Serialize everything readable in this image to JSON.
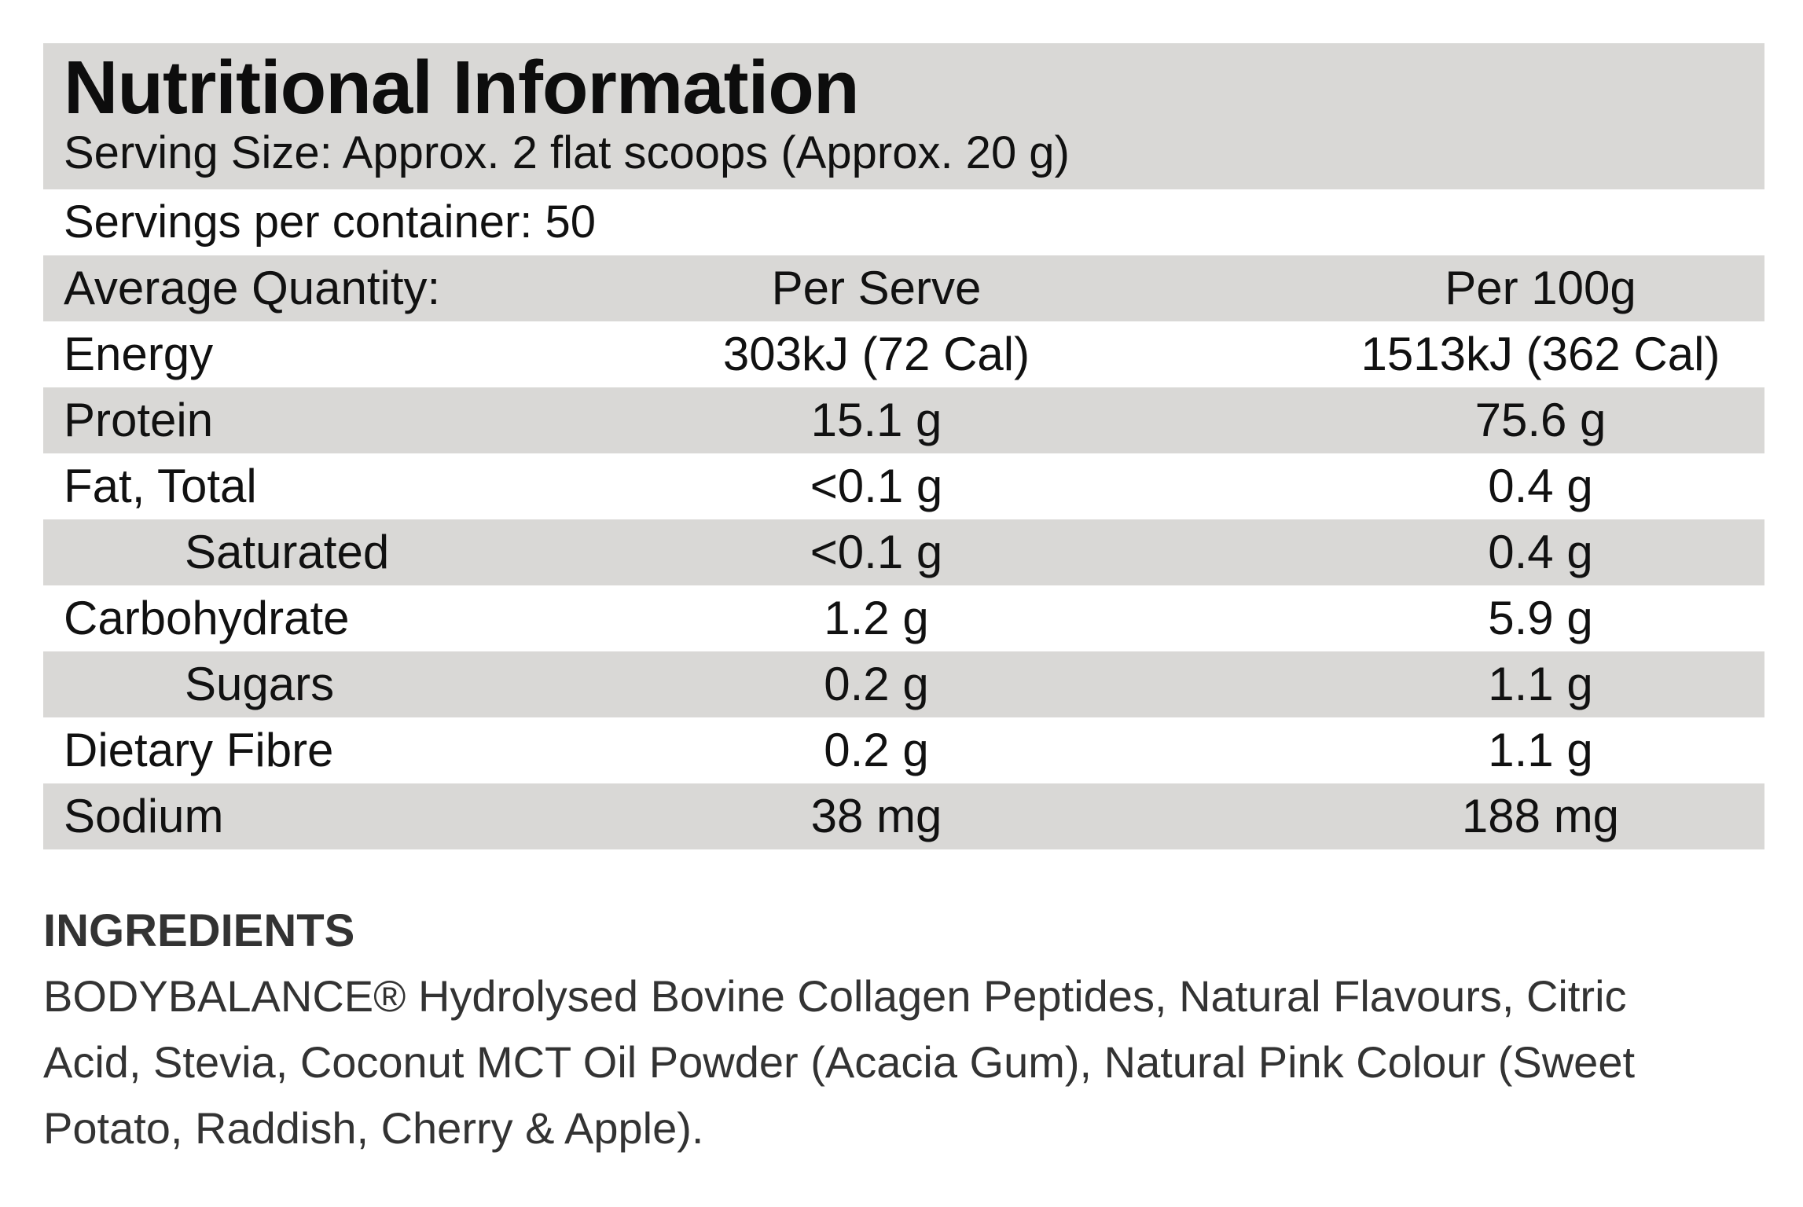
{
  "panel": {
    "title": "Nutritional Information",
    "serving_size": "Serving Size: Approx. 2 flat scoops (Approx. 20 g)",
    "servings_per_container": "Servings per container: 50"
  },
  "table": {
    "headers": {
      "label": "Average Quantity:",
      "per_serve": "Per Serve",
      "per_100g": "Per 100g"
    },
    "rows": [
      {
        "label": "Energy",
        "per_serve": "303kJ (72 Cal)",
        "per_100g": "1513kJ (362 Cal)"
      },
      {
        "label": "Protein",
        "per_serve": "15.1 g",
        "per_100g": "75.6 g"
      },
      {
        "label": "Fat, Total",
        "per_serve": "<0.1 g",
        "per_100g": "0.4 g"
      },
      {
        "label": "Saturated",
        "per_serve": "<0.1 g",
        "per_100g": "0.4 g"
      },
      {
        "label": "Carbohydrate",
        "per_serve": "1.2 g",
        "per_100g": "5.9 g"
      },
      {
        "label": "Sugars",
        "per_serve": "0.2 g",
        "per_100g": "1.1 g"
      },
      {
        "label": "Dietary Fibre",
        "per_serve": "0.2 g",
        "per_100g": "1.1 g"
      },
      {
        "label": "Sodium",
        "per_serve": "38 mg",
        "per_100g": "188 mg"
      }
    ]
  },
  "ingredients": {
    "heading": "INGREDIENTS",
    "text": "BODYBALANCE® Hydrolysed Bovine Collagen Peptides, Natural Flavours, Citric Acid, Stevia, Coconut MCT Oil Powder (Acacia Gum), Natural Pink Colour (Sweet Potato, Raddish, Cherry & Apple)."
  },
  "colors": {
    "shade": "#d9d8d6",
    "text": "#111111",
    "ingredients_text": "#333333"
  }
}
